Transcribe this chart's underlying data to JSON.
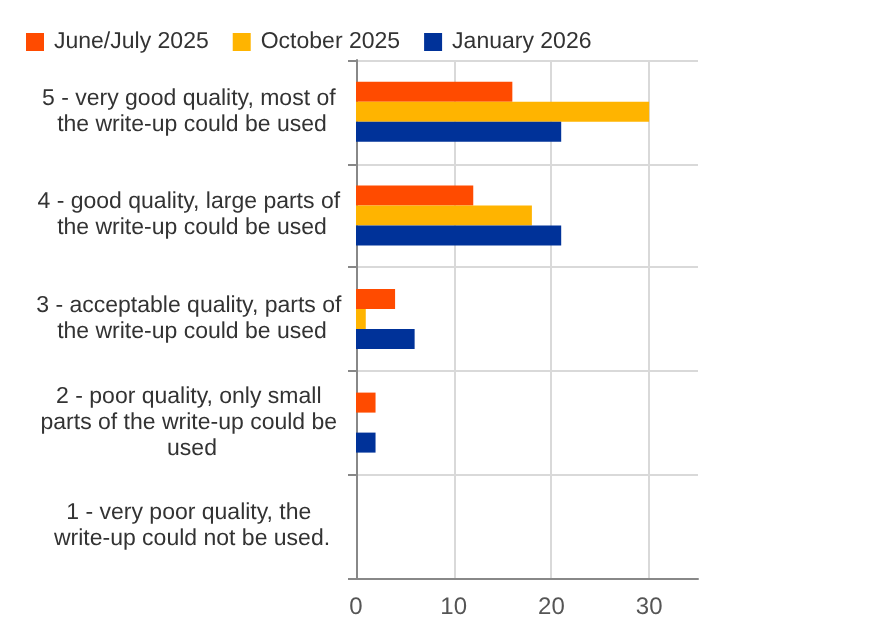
{
  "chart_data": {
    "type": "bar",
    "orientation": "horizontal",
    "categories": [
      "5 - very good quality, most of the write-up could be used",
      "4 - good quality, large parts of the write-up could be used",
      "3 - acceptable quality, parts of the write-up could be used",
      "2 - poor quality, only small parts of the write-up could be used",
      "1 - very poor quality, the write-up could not be used."
    ],
    "series": [
      {
        "name": "June/July 2025",
        "color": "#ff4b00",
        "values": [
          16,
          12,
          4,
          2,
          0
        ]
      },
      {
        "name": "October 2025",
        "color": "#ffb400",
        "values": [
          30,
          18,
          1,
          0,
          0
        ]
      },
      {
        "name": "January 2026",
        "color": "#003299",
        "values": [
          21,
          21,
          6,
          2,
          0
        ]
      }
    ],
    "xlim": [
      0,
      35
    ],
    "xticks": [
      0,
      10,
      20,
      30
    ],
    "grid": true,
    "legend": "top"
  }
}
